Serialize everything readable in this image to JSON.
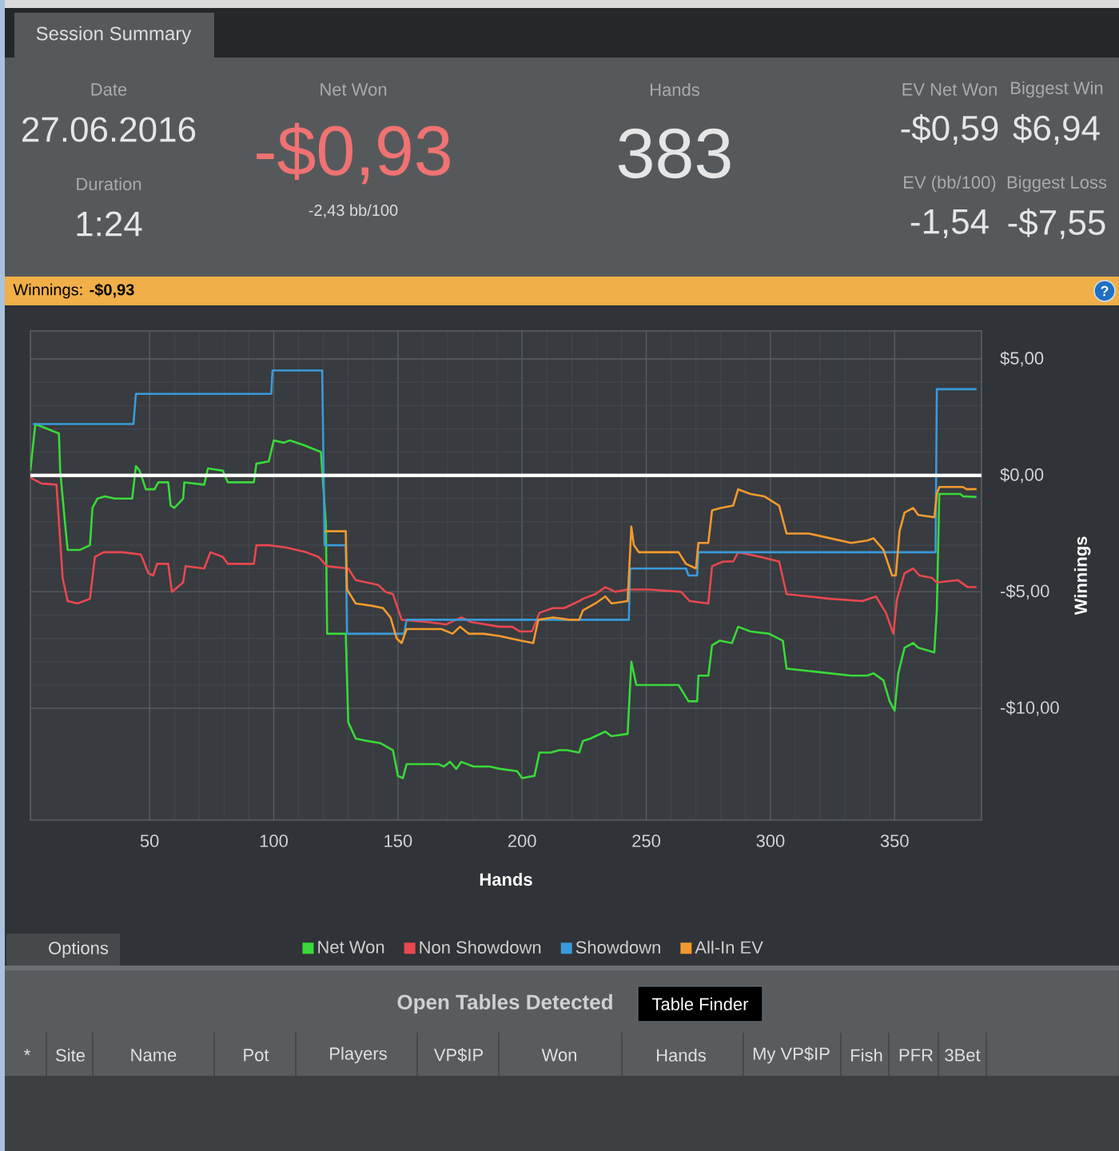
{
  "chart_data": {
    "type": "line",
    "title": "Winnings: **-$0,93**",
    "xlabel": "Hands",
    "ylabel": "Winnings",
    "xlim": [
      2,
      385
    ],
    "ylim": [
      -14.8,
      6.2
    ],
    "xticks": [
      50,
      100,
      150,
      200,
      250,
      300,
      350
    ],
    "yticks": [
      {
        "value": -10,
        "label": "-$10,00"
      },
      {
        "value": -5,
        "label": "-$5,00"
      },
      {
        "value": 0,
        "label": "$0,00"
      },
      {
        "value": 5,
        "label": "$5,00"
      }
    ],
    "grid": true,
    "legend": "bottom",
    "ref_lines": [
      {
        "axis": "y",
        "value": 0,
        "color": "#ffffff"
      }
    ],
    "series": [
      {
        "name": "Net Won",
        "color": "#39d93a",
        "x": [
          2,
          4,
          11,
          13.5,
          14,
          16,
          17,
          22,
          26,
          27,
          29,
          32,
          36,
          43,
          44.5,
          46,
          48.5,
          52,
          53.5,
          57.5,
          58.5,
          60,
          63.5,
          64,
          72,
          73.5,
          79.5,
          81.5,
          92,
          93,
          98,
          100,
          104,
          106.5,
          112,
          119,
          121,
          121.5,
          129,
          130,
          133,
          137.5,
          143,
          148,
          150,
          152,
          153.5,
          166.5,
          168.5,
          171,
          173.5,
          175.5,
          180.5,
          187,
          191,
          198,
          200,
          205,
          207,
          211.5,
          215,
          218,
          223,
          224.5,
          227.5,
          233.5,
          236,
          242.5,
          244,
          246,
          251,
          263,
          267,
          270.5,
          271,
          275,
          276.5,
          279.5,
          284.5,
          287,
          292,
          299.5,
          305,
          306.5,
          315.5,
          324,
          332.5,
          339,
          341.5,
          345.5,
          348,
          350,
          351.5,
          354,
          357.5,
          359.5,
          366,
          367,
          368,
          376.5,
          377.5,
          383
        ],
        "values": [
          0.2,
          2.2,
          1.9,
          1.8,
          0.2,
          -2.1,
          -3.2,
          -3.2,
          -3.0,
          -1.4,
          -1.0,
          -0.9,
          -1.0,
          -1.0,
          0.4,
          0.2,
          -0.6,
          -0.6,
          -0.3,
          -0.3,
          -1.3,
          -1.4,
          -1.0,
          -0.3,
          -0.4,
          0.3,
          0.2,
          -0.3,
          -0.3,
          0.5,
          0.6,
          1.5,
          1.4,
          1.5,
          1.3,
          1.0,
          -2.1,
          -6.8,
          -6.8,
          -10.6,
          -11.3,
          -11.4,
          -11.5,
          -11.8,
          -12.9,
          -13.0,
          -12.4,
          -12.4,
          -12.5,
          -12.3,
          -12.6,
          -12.3,
          -12.5,
          -12.5,
          -12.6,
          -12.7,
          -13.0,
          -12.9,
          -11.9,
          -11.9,
          -11.8,
          -11.8,
          -11.9,
          -11.4,
          -11.3,
          -11.0,
          -11.2,
          -11.1,
          -8.0,
          -9.0,
          -9.0,
          -9.0,
          -9.7,
          -9.7,
          -8.6,
          -8.6,
          -7.3,
          -7.1,
          -7.2,
          -6.5,
          -6.7,
          -6.8,
          -7.1,
          -8.3,
          -8.4,
          -8.5,
          -8.6,
          -8.6,
          -8.5,
          -8.8,
          -9.7,
          -10.1,
          -8.5,
          -7.4,
          -7.2,
          -7.4,
          -7.6,
          -5.8,
          -0.8,
          -0.8,
          -0.9,
          -0.93
        ]
      },
      {
        "name": "Non Showdown",
        "color": "#e8484f",
        "x": [
          2,
          6.5,
          12.5,
          15,
          17,
          21,
          26,
          28,
          31.5,
          39,
          46.5,
          49.5,
          51.5,
          53,
          57.5,
          59,
          63.5,
          64.5,
          72,
          74.5,
          79.5,
          81.5,
          92,
          93,
          98,
          105,
          113,
          118,
          121.5,
          130,
          133,
          142,
          145,
          148,
          151.5,
          162,
          169.5,
          175.5,
          179.5,
          191,
          196,
          199,
          204,
          207,
          212.5,
          217,
          223,
          224.5,
          229.5,
          233.5,
          237.5,
          242.5,
          247,
          251,
          264,
          267.5,
          275,
          276.5,
          281,
          285,
          287,
          296,
          303.5,
          306.5,
          315.5,
          324,
          337,
          342.5,
          346.5,
          349.5,
          351,
          354,
          357.5,
          360,
          365,
          367,
          375.5,
          379.5,
          383
        ],
        "values": [
          -0.1,
          -0.35,
          -0.4,
          -4.4,
          -5.4,
          -5.5,
          -5.3,
          -3.5,
          -3.3,
          -3.3,
          -3.4,
          -4.2,
          -4.3,
          -3.8,
          -3.8,
          -5.0,
          -4.6,
          -3.9,
          -4.0,
          -3.3,
          -3.5,
          -3.8,
          -3.8,
          -3.0,
          -3.0,
          -3.1,
          -3.3,
          -3.5,
          -3.9,
          -4.0,
          -4.5,
          -4.7,
          -5.0,
          -5.1,
          -6.2,
          -6.3,
          -6.4,
          -6.1,
          -6.3,
          -6.5,
          -6.5,
          -6.7,
          -6.7,
          -5.9,
          -5.7,
          -5.7,
          -5.4,
          -5.3,
          -5.1,
          -4.8,
          -5.0,
          -4.9,
          -4.9,
          -4.9,
          -5.0,
          -5.4,
          -5.5,
          -3.9,
          -3.7,
          -3.7,
          -3.3,
          -3.5,
          -3.7,
          -5.1,
          -5.2,
          -5.3,
          -5.4,
          -5.2,
          -5.9,
          -6.8,
          -5.3,
          -4.2,
          -4.0,
          -4.3,
          -4.4,
          -4.6,
          -4.5,
          -4.8,
          -4.8
        ]
      },
      {
        "name": "Showdown",
        "color": "#3a9ad9",
        "x": [
          3,
          43.5,
          44.5,
          99,
          99.5,
          119.5,
          120.5,
          129,
          129.5,
          152.5,
          153.5,
          243,
          243.5,
          266,
          267,
          270.5,
          271,
          366.5,
          367,
          383
        ],
        "values": [
          2.2,
          2.2,
          3.5,
          3.5,
          4.5,
          4.5,
          -3.0,
          -3.0,
          -6.8,
          -6.8,
          -6.2,
          -6.2,
          -4.0,
          -4.0,
          -4.3,
          -4.3,
          -3.3,
          -3.3,
          3.7,
          3.7
        ]
      },
      {
        "name": "All-In EV",
        "color": "#f39a2e",
        "x": [
          120.5,
          129,
          129.5,
          133,
          139.5,
          144,
          147,
          149.5,
          151.5,
          153.5,
          167.5,
          172,
          175,
          178.5,
          184.5,
          191,
          199.5,
          204.5,
          206.5,
          212.5,
          219,
          223,
          224.5,
          229.5,
          233.5,
          236,
          242.5,
          244,
          245,
          247,
          251,
          263,
          266,
          270,
          271,
          275,
          276.5,
          280,
          285,
          287,
          292,
          297.5,
          303.5,
          306.5,
          315.5,
          324,
          332.5,
          339,
          341.5,
          345.5,
          349,
          350.5,
          352,
          354,
          357.5,
          359.5,
          366,
          367,
          368,
          377.5,
          379,
          383
        ],
        "values": [
          -2.4,
          -2.4,
          -4.9,
          -5.5,
          -5.6,
          -5.7,
          -6.1,
          -7.0,
          -7.2,
          -6.6,
          -6.6,
          -6.8,
          -6.5,
          -6.8,
          -6.8,
          -6.9,
          -7.1,
          -7.2,
          -6.2,
          -6.1,
          -6.2,
          -6.2,
          -5.8,
          -5.5,
          -5.2,
          -5.5,
          -5.4,
          -2.2,
          -3.0,
          -3.3,
          -3.3,
          -3.3,
          -3.8,
          -4.0,
          -2.9,
          -2.9,
          -1.5,
          -1.4,
          -1.3,
          -0.6,
          -0.8,
          -0.9,
          -1.3,
          -2.5,
          -2.5,
          -2.7,
          -2.9,
          -2.8,
          -2.7,
          -3.2,
          -4.3,
          -4.3,
          -2.4,
          -1.6,
          -1.4,
          -1.7,
          -1.8,
          -0.8,
          -0.5,
          -0.5,
          -0.6,
          -0.59
        ]
      }
    ],
    "annotations": [
      "Session Summary",
      "Date",
      "27.06.2016",
      "Duration",
      "1:24",
      "Net Won",
      "-$0,93",
      "-2,43 bb/100",
      "Hands",
      "383",
      "EV Net Won",
      "-$0,59",
      "Biggest Win",
      "$6,94",
      "EV (bb/100)",
      "-1,54",
      "Biggest Loss",
      "-$7,55",
      "Options",
      "Open Tables Detected",
      "Table Finder",
      "*",
      "Site",
      "Name",
      "Pot",
      "Players",
      "VP$IP",
      "Won",
      "Hands",
      "My VP$IP",
      "Fish",
      "PFR",
      "3Bet",
      "?"
    ]
  }
}
